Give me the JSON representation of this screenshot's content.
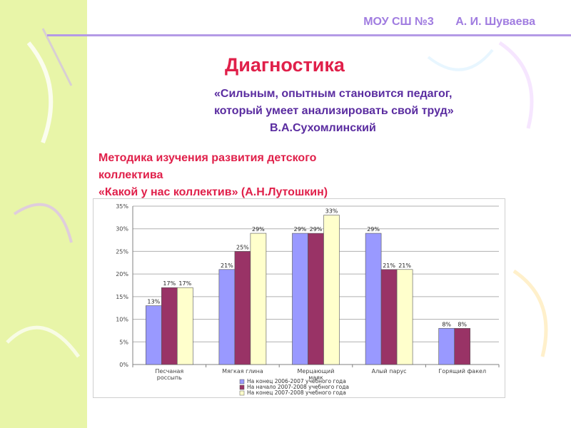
{
  "header": {
    "school": "МОУ СШ №3",
    "author": "А. И. Шуваева"
  },
  "title": "Диагностика",
  "quote": {
    "line1": "«Сильным, опытным становится педагог,",
    "line2": "который умеет анализировать свой труд»",
    "attribution": "В.А.Сухомлинский"
  },
  "method": {
    "line1": "Методика изучения развития детского",
    "line2": "коллектива",
    "line3": "«Какой у нас коллектив» (А.Н.Лутошкин)"
  },
  "colors": {
    "background_band": "#e8f5a8",
    "header_text": "#a07ce0",
    "title": "#e0204a",
    "quote": "#5a2ca0"
  },
  "chart_data": {
    "type": "bar",
    "categories": [
      "Песчаная россыпь",
      "Мягкая глина",
      "Мерцающий маяк",
      "Алый парус",
      "Горящий факел"
    ],
    "category_lines": [
      [
        "Песчаная",
        "россыпь"
      ],
      [
        "Мягкая глина"
      ],
      [
        "Мерцающий",
        "маяк"
      ],
      [
        "Алый парус"
      ],
      [
        "Горящий факел"
      ]
    ],
    "series": [
      {
        "name": "На конец 2006-2007  учебного года",
        "color": "#9999ff",
        "values": [
          13,
          21,
          29,
          29,
          8
        ]
      },
      {
        "name": "На начало 2007-2008  учебного года",
        "color": "#993366",
        "values": [
          17,
          25,
          29,
          21,
          8
        ]
      },
      {
        "name": "На конец 2007-2008  учебного года",
        "color": "#ffffcc",
        "values": [
          17,
          29,
          33,
          21,
          null
        ]
      }
    ],
    "data_labels": [
      [
        "13%",
        "21%",
        "29%",
        "29%",
        "8%"
      ],
      [
        "17%",
        "25%",
        "29%",
        "21%",
        "8%"
      ],
      [
        "17%",
        "29%",
        "33%",
        "21%",
        null
      ]
    ],
    "yticks": [
      "0%",
      "5%",
      "10%",
      "15%",
      "20%",
      "25%",
      "30%",
      "35%"
    ],
    "ylim": [
      0,
      35
    ],
    "grid": true,
    "legend_position": "bottom"
  }
}
